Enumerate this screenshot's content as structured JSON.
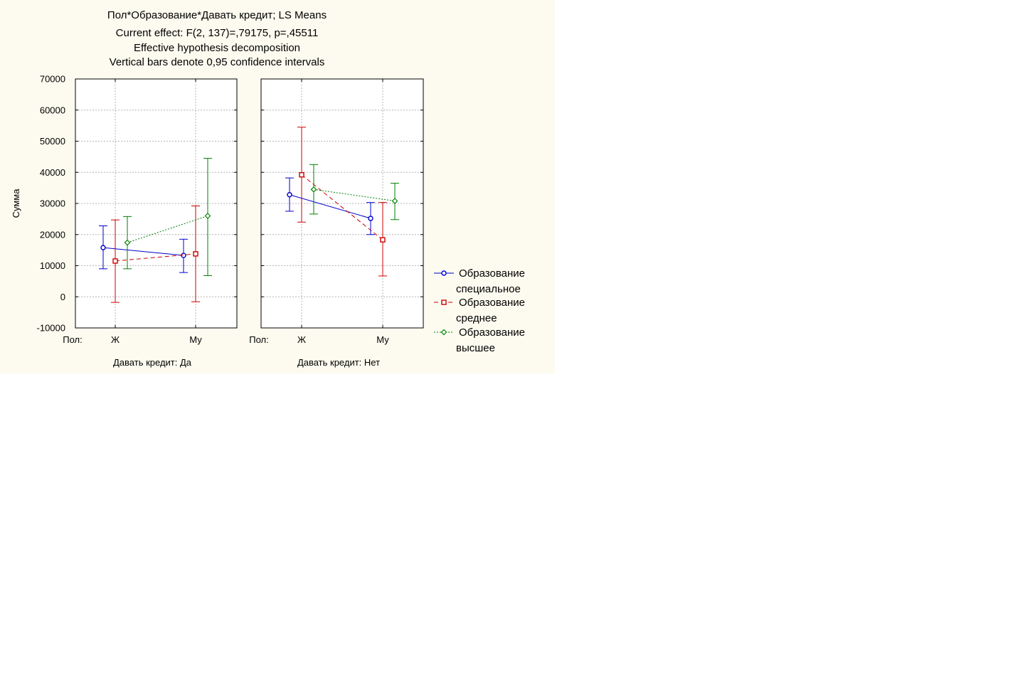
{
  "chart_data": {
    "type": "line",
    "title_lines": [
      "Пол*Образование*Давать кредит; LS Means",
      "Current effect: F(2, 137)=,79175, p=,45511",
      "Effective hypothesis decomposition",
      "Vertical bars denote 0,95 confidence intervals"
    ],
    "ylabel": "Сумма",
    "ylim": [
      -10000,
      70000
    ],
    "yticks": [
      "70000",
      "60000",
      "50000",
      "40000",
      "30000",
      "20000",
      "10000",
      "0",
      "-10000"
    ],
    "x_factor_label": "Пол:",
    "categories": [
      "Ж",
      "Му"
    ],
    "grid": true,
    "legend_position": "right",
    "panels": [
      {
        "label": "Давать кредит: Да",
        "series": [
          {
            "name": "Образование специальное",
            "mean": [
              15800,
              13300
            ],
            "lower": [
              9000,
              7800
            ],
            "upper": [
              22800,
              18500
            ]
          },
          {
            "name": "Образование среднее",
            "mean": [
              11500,
              13800
            ],
            "lower": [
              -1800,
              -1600
            ],
            "upper": [
              24700,
              29200
            ]
          },
          {
            "name": "Образование высшее",
            "mean": [
              17400,
              26000
            ],
            "lower": [
              9000,
              6800
            ],
            "upper": [
              25800,
              44500
            ]
          }
        ]
      },
      {
        "label": "Давать кредит: Нет",
        "series": [
          {
            "name": "Образование специальное",
            "mean": [
              32800,
              25200
            ],
            "lower": [
              27500,
              20000
            ],
            "upper": [
              38200,
              30300
            ]
          },
          {
            "name": "Образование среднее",
            "mean": [
              39200,
              18300
            ],
            "lower": [
              24000,
              6700
            ],
            "upper": [
              54500,
              30300
            ]
          },
          {
            "name": "Образование высшее",
            "mean": [
              34500,
              30800
            ],
            "lower": [
              26600,
              24800
            ],
            "upper": [
              42500,
              36500
            ]
          }
        ]
      }
    ],
    "legend": [
      {
        "line1": "Образование",
        "line2": "специальное",
        "color": "#0000cc",
        "marker": "circle",
        "dash": "solid"
      },
      {
        "line1": "Образование",
        "line2": "среднее",
        "color": "#cc0000",
        "marker": "square",
        "dash": "dashed"
      },
      {
        "line1": "Образование",
        "line2": "высшее",
        "color": "#008000",
        "marker": "diamond",
        "dash": "dotted"
      }
    ]
  }
}
